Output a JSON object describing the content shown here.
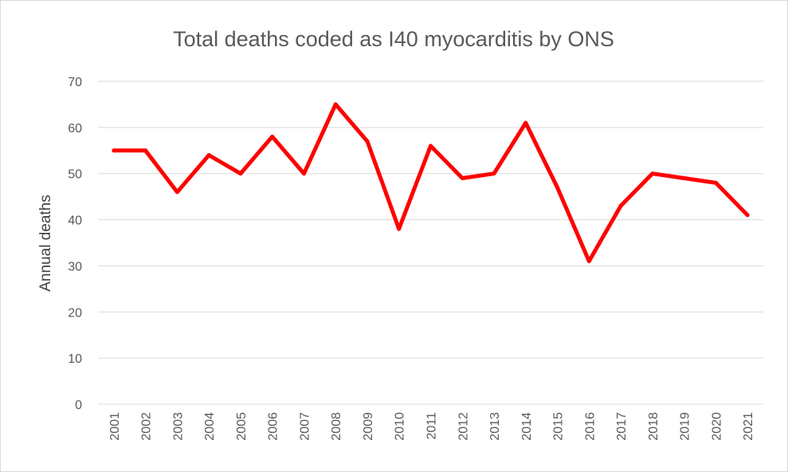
{
  "chart_data": {
    "type": "line",
    "title": "Total deaths coded as I40 myocarditis by ONS",
    "xlabel": "",
    "ylabel": "Annual deaths",
    "categories": [
      "2001",
      "2002",
      "2003",
      "2004",
      "2005",
      "2006",
      "2007",
      "2008",
      "2009",
      "2010",
      "2011",
      "2012",
      "2013",
      "2014",
      "2015",
      "2016",
      "2017",
      "2018",
      "2019",
      "2020",
      "2021"
    ],
    "series": [
      {
        "name": "Annual deaths",
        "color": "#ff0000",
        "values": [
          55,
          55,
          46,
          54,
          50,
          58,
          50,
          65,
          57,
          38,
          56,
          49,
          50,
          61,
          47,
          31,
          43,
          50,
          49,
          48,
          41
        ]
      }
    ],
    "ylim": [
      0,
      70
    ],
    "yticks": [
      0,
      10,
      20,
      30,
      40,
      50,
      60,
      70
    ],
    "grid": true,
    "legend": "none"
  }
}
